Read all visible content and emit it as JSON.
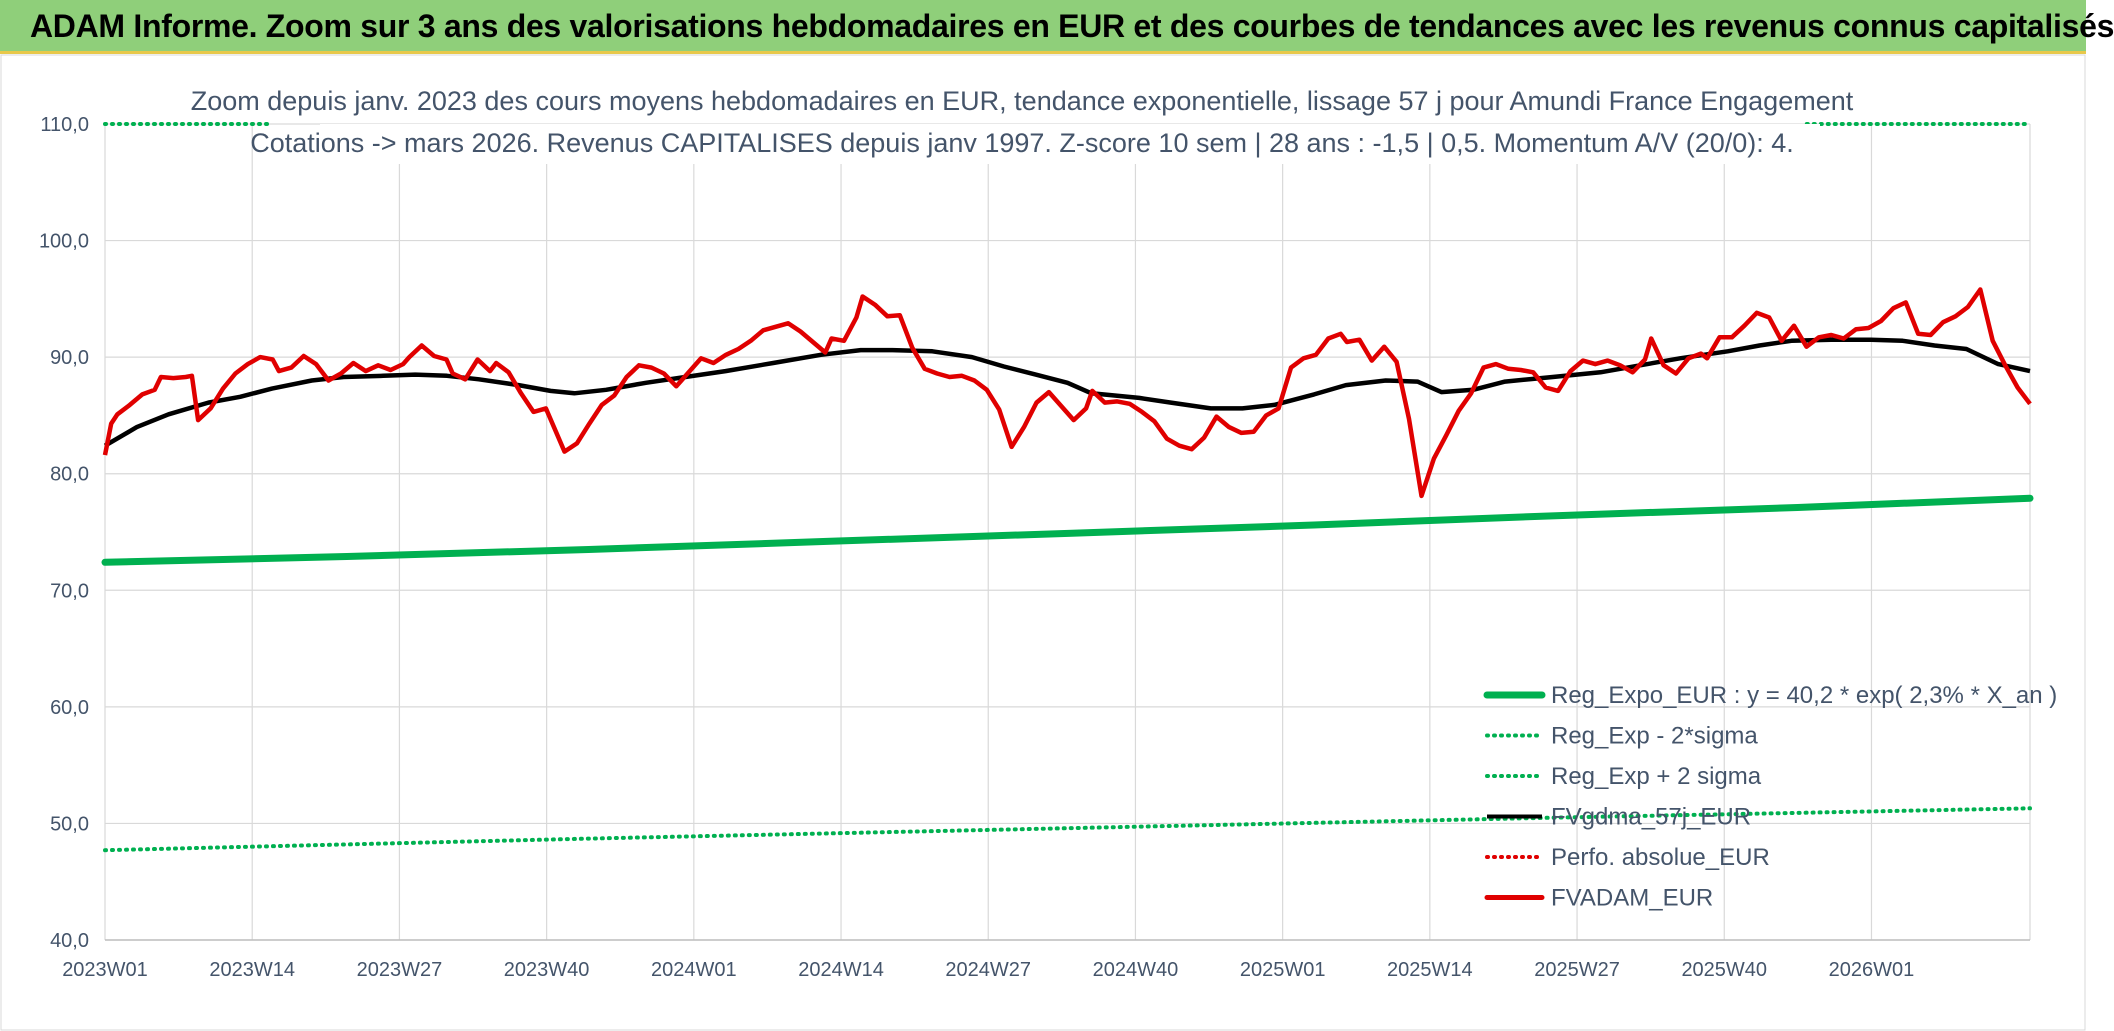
{
  "header": {
    "title": "ADAM Informe. Zoom sur 3 ans des valorisations hebdomadaires en EUR et des courbes de tendances avec les revenus connus capitalisés"
  },
  "colors": {
    "header_bg": "#8fcf7a",
    "reg_expo": "#00b050",
    "fvgdma": "#000000",
    "perfo": "#e00000",
    "fvadam": "#e00000",
    "grid": "#d9d9d9",
    "text": "#44546a"
  },
  "chart_data": {
    "type": "line",
    "title_lines": [
      "Zoom depuis janv. 2023 des cours moyens hebdomadaires en EUR, tendance exponentielle, lissage 57 j pour Amundi France Engagement",
      "Cotations -> mars 2026. Revenus CAPITALISES depuis janv 1997. Z-score 10 sem | 28 ans : -1,5 | 0,5. Momentum A/V (20/0): 4."
    ],
    "ylim": [
      40,
      110
    ],
    "y_ticks": [
      "40,0",
      "50,0",
      "60,0",
      "70,0",
      "80,0",
      "90,0",
      "100,0",
      "110,0"
    ],
    "x_ticks": [
      "2023W01",
      "2023W14",
      "2023W27",
      "2023W40",
      "2024W01",
      "2024W14",
      "2024W27",
      "2024W40",
      "2025W01",
      "2025W14",
      "2025W27",
      "2025W40",
      "2026W01"
    ],
    "x_weeks_total": 170,
    "grid": true,
    "legend_position": "bottom-right",
    "legend": [
      {
        "label": "Reg_Expo_EUR : y = 40,2 * exp( 2,3% *  X_an )",
        "style": "thick",
        "color": "#00b050"
      },
      {
        "label": "Reg_Exp - 2*sigma",
        "style": "dotted",
        "color": "#00b050"
      },
      {
        "label": "Reg_Exp + 2 sigma",
        "style": "dotted",
        "color": "#00b050"
      },
      {
        "label": "FVgdma_57j_EUR",
        "style": "solid",
        "color": "#000000"
      },
      {
        "label": "Perfo. absolue_EUR",
        "style": "dotted",
        "color": "#e00000"
      },
      {
        "label": "FVADAM_EUR",
        "style": "thick",
        "color": "#e00000"
      }
    ],
    "series": [
      {
        "name": "Reg_Expo_EUR",
        "anchors": [
          [
            0,
            72.4
          ],
          [
            26,
            72.9
          ],
          [
            52,
            73.5
          ],
          [
            78,
            74.2
          ],
          [
            104,
            74.9
          ],
          [
            130,
            75.6
          ],
          [
            156,
            76.4
          ],
          [
            182,
            77.1
          ],
          [
            207,
            77.9
          ]
        ]
      },
      {
        "name": "Reg_Exp - 2*sigma",
        "anchors": [
          [
            0,
            47.7
          ],
          [
            52,
            48.7
          ],
          [
            104,
            49.6
          ],
          [
            156,
            50.5
          ],
          [
            207,
            51.3
          ]
        ]
      },
      {
        "name": "Reg_Exp + 2 sigma",
        "anchors": [
          [
            0,
            110
          ],
          [
            18,
            110
          ]
        ],
        "anchors_b": [
          [
            183,
            110
          ],
          [
            207,
            110
          ]
        ]
      },
      {
        "name": "FVgdma_57j_EUR",
        "anchors": [
          [
            0,
            82.4
          ],
          [
            4,
            84.0
          ],
          [
            8,
            85.1
          ],
          [
            13,
            86.1
          ],
          [
            17,
            86.6
          ],
          [
            21,
            87.3
          ],
          [
            26,
            88.0
          ],
          [
            30,
            88.3
          ],
          [
            35,
            88.4
          ],
          [
            39,
            88.5
          ],
          [
            43,
            88.4
          ],
          [
            47,
            88.1
          ],
          [
            52,
            87.6
          ],
          [
            56,
            87.1
          ],
          [
            59,
            86.9
          ],
          [
            63,
            87.2
          ],
          [
            68,
            87.8
          ],
          [
            72,
            88.2
          ],
          [
            78,
            88.8
          ],
          [
            84,
            89.5
          ],
          [
            90,
            90.2
          ],
          [
            95,
            90.6
          ],
          [
            99,
            90.6
          ],
          [
            104,
            90.5
          ],
          [
            109,
            90.0
          ],
          [
            113,
            89.2
          ],
          [
            117,
            88.5
          ],
          [
            121,
            87.8
          ],
          [
            124,
            86.9
          ],
          [
            130,
            86.5
          ],
          [
            134,
            86.1
          ],
          [
            139,
            85.6
          ],
          [
            143,
            85.6
          ],
          [
            147,
            85.9
          ],
          [
            152,
            86.8
          ],
          [
            156,
            87.6
          ],
          [
            161,
            88.0
          ],
          [
            165,
            87.9
          ],
          [
            168,
            87.0
          ],
          [
            172,
            87.2
          ],
          [
            176,
            87.9
          ],
          [
            182,
            88.3
          ],
          [
            188,
            88.7
          ],
          [
            193,
            89.3
          ],
          [
            198,
            89.9
          ],
          [
            204,
            90.5
          ],
          [
            208,
            91.0
          ],
          [
            212,
            91.4
          ],
          [
            217,
            91.5
          ],
          [
            222,
            91.5
          ],
          [
            226,
            91.4
          ],
          [
            230,
            91.0
          ],
          [
            234,
            90.7
          ],
          [
            238,
            89.4
          ],
          [
            242,
            88.8
          ]
        ]
      },
      {
        "name": "FVADAM_EUR",
        "anchors": [
          [
            0,
            81.6
          ],
          [
            1,
            84.3
          ],
          [
            2,
            85.1
          ],
          [
            4,
            85.9
          ],
          [
            6,
            86.8
          ],
          [
            8,
            87.2
          ],
          [
            9,
            88.3
          ],
          [
            11,
            88.2
          ],
          [
            13,
            88.3
          ],
          [
            14,
            88.4
          ],
          [
            15,
            84.6
          ],
          [
            17,
            85.6
          ],
          [
            19,
            87.3
          ],
          [
            21,
            88.6
          ],
          [
            23,
            89.4
          ],
          [
            25,
            90.0
          ],
          [
            27,
            89.8
          ],
          [
            28,
            88.8
          ],
          [
            30,
            89.1
          ],
          [
            32,
            90.1
          ],
          [
            34,
            89.4
          ],
          [
            36,
            88.0
          ],
          [
            38,
            88.6
          ],
          [
            40,
            89.5
          ],
          [
            42,
            88.8
          ],
          [
            44,
            89.3
          ],
          [
            46,
            88.9
          ],
          [
            48,
            89.4
          ],
          [
            49,
            90.0
          ],
          [
            51,
            91.0
          ],
          [
            53,
            90.1
          ],
          [
            55,
            89.8
          ],
          [
            56,
            88.6
          ],
          [
            58,
            88.1
          ],
          [
            60,
            89.8
          ],
          [
            62,
            88.8
          ],
          [
            63,
            89.5
          ],
          [
            65,
            88.7
          ],
          [
            67,
            86.9
          ],
          [
            69,
            85.3
          ],
          [
            71,
            85.6
          ],
          [
            74,
            81.9
          ],
          [
            76,
            82.6
          ],
          [
            78,
            84.3
          ],
          [
            80,
            85.9
          ],
          [
            82,
            86.7
          ],
          [
            84,
            88.3
          ],
          [
            86,
            89.3
          ],
          [
            88,
            89.1
          ],
          [
            90,
            88.6
          ],
          [
            92,
            87.5
          ],
          [
            94,
            88.7
          ],
          [
            96,
            89.9
          ],
          [
            98,
            89.5
          ],
          [
            100,
            90.2
          ],
          [
            102,
            90.7
          ],
          [
            104,
            91.4
          ],
          [
            106,
            92.3
          ],
          [
            108,
            92.6
          ],
          [
            110,
            92.9
          ],
          [
            112,
            92.2
          ],
          [
            114,
            91.3
          ],
          [
            116,
            90.4
          ],
          [
            117,
            91.6
          ],
          [
            119,
            91.4
          ],
          [
            121,
            93.4
          ],
          [
            122,
            95.2
          ],
          [
            124,
            94.5
          ],
          [
            126,
            93.5
          ],
          [
            128,
            93.6
          ],
          [
            130,
            90.8
          ],
          [
            132,
            89.0
          ],
          [
            134,
            88.6
          ],
          [
            136,
            88.3
          ],
          [
            138,
            88.4
          ],
          [
            140,
            88.0
          ],
          [
            142,
            87.2
          ],
          [
            144,
            85.5
          ],
          [
            146,
            82.3
          ],
          [
            148,
            84.0
          ],
          [
            150,
            86.1
          ],
          [
            152,
            87.0
          ],
          [
            154,
            85.8
          ],
          [
            156,
            84.6
          ],
          [
            158,
            85.6
          ],
          [
            159,
            87.1
          ],
          [
            161,
            86.1
          ],
          [
            163,
            86.2
          ],
          [
            165,
            86.0
          ],
          [
            167,
            85.3
          ],
          [
            169,
            84.5
          ],
          [
            171,
            83.0
          ],
          [
            173,
            82.4
          ],
          [
            175,
            82.1
          ],
          [
            177,
            83.1
          ],
          [
            179,
            84.9
          ],
          [
            181,
            84.0
          ],
          [
            183,
            83.5
          ],
          [
            185,
            83.6
          ],
          [
            187,
            85.0
          ],
          [
            189,
            85.6
          ],
          [
            191,
            89.1
          ],
          [
            193,
            89.9
          ],
          [
            195,
            90.2
          ],
          [
            197,
            91.6
          ],
          [
            199,
            92.0
          ],
          [
            200,
            91.3
          ],
          [
            202,
            91.5
          ],
          [
            204,
            89.7
          ],
          [
            206,
            90.9
          ],
          [
            208,
            89.6
          ],
          [
            210,
            84.7
          ],
          [
            212,
            78.1
          ],
          [
            214,
            81.3
          ],
          [
            216,
            83.3
          ],
          [
            218,
            85.4
          ],
          [
            220,
            86.9
          ],
          [
            222,
            89.1
          ],
          [
            224,
            89.4
          ],
          [
            226,
            89.0
          ],
          [
            228,
            88.9
          ],
          [
            230,
            88.7
          ],
          [
            232,
            87.4
          ],
          [
            234,
            87.1
          ],
          [
            236,
            88.8
          ],
          [
            238,
            89.7
          ],
          [
            240,
            89.4
          ],
          [
            242,
            89.7
          ],
          [
            244,
            89.3
          ],
          [
            246,
            88.7
          ],
          [
            248,
            89.8
          ],
          [
            249,
            91.6
          ],
          [
            251,
            89.3
          ],
          [
            253,
            88.6
          ],
          [
            255,
            89.9
          ],
          [
            257,
            90.3
          ],
          [
            258,
            89.9
          ],
          [
            260,
            91.7
          ],
          [
            262,
            91.7
          ],
          [
            264,
            92.7
          ],
          [
            266,
            93.8
          ],
          [
            268,
            93.4
          ],
          [
            270,
            91.4
          ],
          [
            272,
            92.7
          ],
          [
            274,
            90.9
          ],
          [
            276,
            91.7
          ],
          [
            278,
            91.9
          ],
          [
            280,
            91.6
          ],
          [
            282,
            92.4
          ],
          [
            284,
            92.5
          ],
          [
            286,
            93.1
          ],
          [
            288,
            94.2
          ],
          [
            290,
            94.7
          ],
          [
            292,
            92.0
          ],
          [
            294,
            91.9
          ],
          [
            296,
            93.0
          ],
          [
            298,
            93.5
          ],
          [
            300,
            94.3
          ],
          [
            302,
            95.8
          ],
          [
            304,
            91.4
          ],
          [
            306,
            89.3
          ],
          [
            308,
            87.4
          ],
          [
            310,
            86.0
          ]
        ]
      }
    ]
  }
}
